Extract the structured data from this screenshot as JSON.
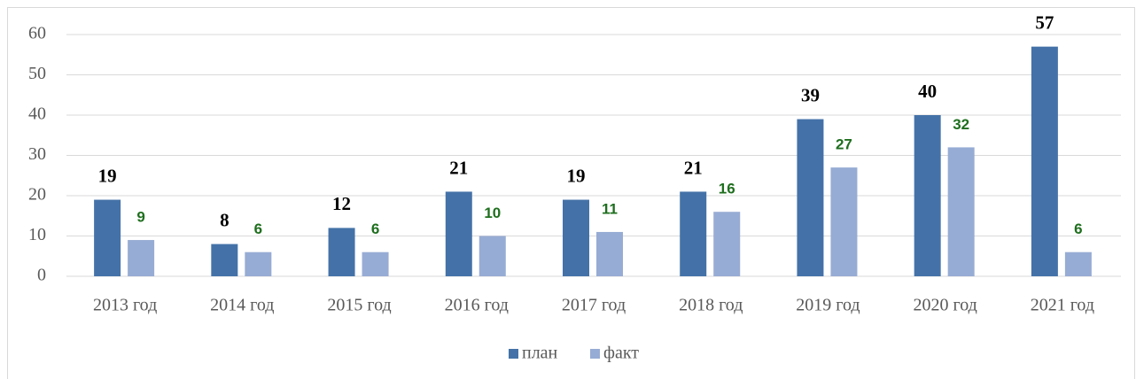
{
  "chart_data": {
    "type": "bar",
    "categories": [
      "2013 год",
      "2014 год",
      "2015 год",
      "2016 год",
      "2017 год",
      "2018 год",
      "2019 год",
      "2020 год",
      "2021 год"
    ],
    "series": [
      {
        "name": "план",
        "color": "#4472a8",
        "label_color": "#000000",
        "values": [
          19,
          8,
          12,
          21,
          19,
          21,
          39,
          40,
          57
        ]
      },
      {
        "name": "факт",
        "color": "#97acd4",
        "label_color": "#1e6e1e",
        "values": [
          9,
          6,
          6,
          10,
          11,
          16,
          27,
          32,
          6
        ]
      }
    ],
    "ylim": [
      0,
      60
    ],
    "yticks": [
      0,
      10,
      20,
      30,
      40,
      50,
      60
    ],
    "grid": true,
    "legend": "bottom"
  }
}
